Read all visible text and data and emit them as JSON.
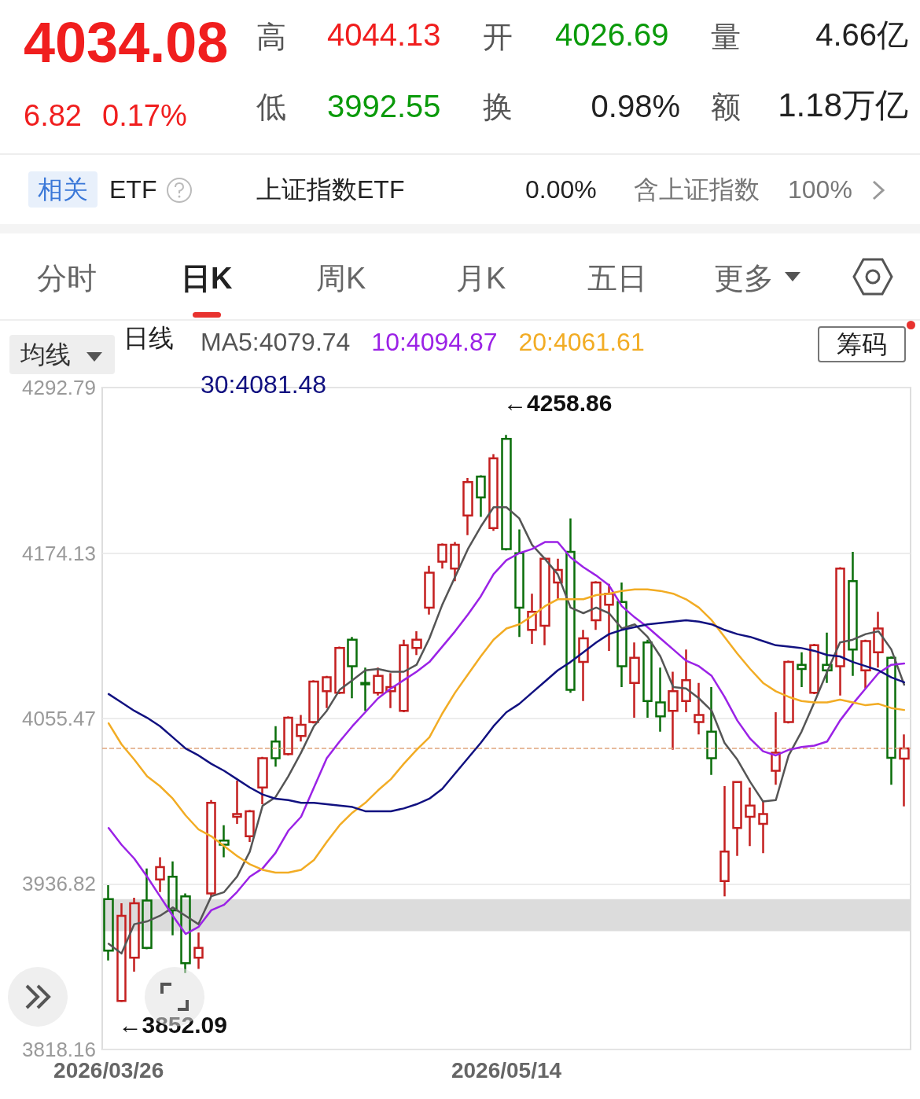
{
  "chart_data": {
    "type": "candlestick",
    "legend_title": "日线",
    "categories": [
      "2026/03/26",
      null,
      null,
      null,
      null,
      null,
      null,
      null,
      null,
      null,
      null,
      null,
      null,
      null,
      null,
      null,
      null,
      null,
      null,
      null,
      null,
      null,
      null,
      null,
      null,
      null,
      null,
      null,
      null,
      null,
      null,
      "2026/05/14",
      null,
      null,
      null,
      null,
      null,
      null,
      null,
      null,
      null,
      null,
      null,
      null,
      null,
      null,
      null,
      null,
      null,
      null,
      null,
      null,
      null,
      null,
      null,
      null,
      null,
      null,
      null,
      null,
      null,
      null,
      null
    ],
    "ohlc": [
      [
        3926,
        3936,
        3882,
        3889
      ],
      [
        3853,
        3923,
        3852.09,
        3914
      ],
      [
        3884,
        3927,
        3874,
        3923
      ],
      [
        3925,
        3948,
        3890,
        3891
      ],
      [
        3940,
        3956,
        3931,
        3949
      ],
      [
        3942,
        3953,
        3900,
        3918
      ],
      [
        3928,
        3930,
        3873,
        3880
      ],
      [
        3884,
        3902,
        3876,
        3891
      ],
      [
        3930,
        3997,
        3928,
        3995
      ],
      [
        3968,
        3979,
        3956,
        3965
      ],
      [
        3985,
        4011,
        3980,
        3987
      ],
      [
        3971,
        3990,
        3967,
        3989
      ],
      [
        4006,
        4028,
        3994,
        4027
      ],
      [
        4039,
        4050,
        4021,
        4027
      ],
      [
        4030,
        4057,
        4029,
        4056
      ],
      [
        4043,
        4058,
        4039,
        4051
      ],
      [
        4053,
        4083,
        4052,
        4082
      ],
      [
        4075,
        4086,
        4063,
        4085
      ],
      [
        4074,
        4107,
        4073,
        4106
      ],
      [
        4112,
        4114,
        4070,
        4093
      ],
      [
        4081,
        4092,
        4061,
        4080
      ],
      [
        4074,
        4092,
        4072,
        4086
      ],
      [
        4075,
        4088,
        4063,
        4078
      ],
      [
        4061,
        4112,
        4060,
        4108
      ],
      [
        4106,
        4118,
        4101,
        4112
      ],
      [
        4135,
        4165,
        4130,
        4160
      ],
      [
        4168,
        4181,
        4163,
        4180
      ],
      [
        4163,
        4182,
        4154,
        4180
      ],
      [
        4201,
        4228,
        4187,
        4225
      ],
      [
        4229,
        4230,
        4200,
        4214
      ],
      [
        4192,
        4245,
        4190,
        4242
      ],
      [
        4256,
        4258.86,
        4176,
        4177
      ],
      [
        4174,
        4191,
        4114,
        4135
      ],
      [
        4119,
        4145,
        4109,
        4132
      ],
      [
        4122,
        4171,
        4108,
        4170
      ],
      [
        4153,
        4170,
        4141,
        4162
      ],
      [
        4175,
        4199,
        4074,
        4076
      ],
      [
        4096,
        4119,
        4068,
        4113
      ],
      [
        4126,
        4154,
        4119,
        4153
      ],
      [
        4137,
        4152,
        4104,
        4145
      ],
      [
        4139,
        4153,
        4078,
        4093
      ],
      [
        4081,
        4110,
        4056,
        4099
      ],
      [
        4110,
        4112,
        4056,
        4068
      ],
      [
        4067,
        4092,
        4046,
        4057
      ],
      [
        4061,
        4089,
        4033,
        4075
      ],
      [
        4068,
        4105,
        4060,
        4083
      ],
      [
        4053,
        4081,
        4044,
        4058
      ],
      [
        4046,
        4078,
        4015,
        4027
      ],
      [
        3939,
        4007,
        3928,
        3960
      ],
      [
        3977,
        4010,
        3957,
        4010
      ],
      [
        3985,
        4006,
        3964,
        3993
      ],
      [
        3980,
        3996,
        3959,
        3987
      ],
      [
        4018,
        4060,
        4008,
        4031
      ],
      [
        4053,
        4097,
        4052,
        4096
      ],
      [
        4094,
        4103,
        4078,
        4091
      ],
      [
        4074,
        4109,
        4073,
        4108
      ],
      [
        4094,
        4117,
        4081,
        4090
      ],
      [
        4093,
        4164,
        4072,
        4163
      ],
      [
        4154,
        4175,
        4086,
        4105
      ],
      [
        4090,
        4112,
        4077,
        4111
      ],
      [
        4103,
        4132,
        4092,
        4120
      ],
      [
        4099,
        4100,
        4008,
        4027.26
      ],
      [
        4026.69,
        4044.13,
        3992.55,
        4034.08
      ]
    ],
    "colors": [
      "#0a6e0a",
      "#c41f1f",
      "#c41f1f",
      "#0a6e0a",
      "#c41f1f",
      "#0a6e0a",
      "#0a6e0a",
      "#c41f1f",
      "#c41f1f",
      "#0a6e0a",
      "#c41f1f",
      "#c41f1f",
      "#c41f1f",
      "#0a6e0a",
      "#c41f1f",
      "#c41f1f",
      "#c41f1f",
      "#c41f1f",
      "#c41f1f",
      "#0a6e0a",
      "#0a6e0a",
      "#c41f1f",
      "#c41f1f",
      "#c41f1f",
      "#c41f1f",
      "#c41f1f",
      "#c41f1f",
      "#c41f1f",
      "#c41f1f",
      "#0a6e0a",
      "#c41f1f",
      "#0a6e0a",
      "#0a6e0a",
      "#c41f1f",
      "#c41f1f",
      "#c41f1f",
      "#0a6e0a",
      "#c41f1f",
      "#c41f1f",
      "#c41f1f",
      "#0a6e0a",
      "#c41f1f",
      "#0a6e0a",
      "#0a6e0a",
      "#c41f1f",
      "#c41f1f",
      "#c41f1f",
      "#0a6e0a",
      "#c41f1f",
      "#c41f1f",
      "#c41f1f",
      "#c41f1f",
      "#c41f1f",
      "#c41f1f",
      "#0a6e0a",
      "#c41f1f",
      "#0a6e0a",
      "#c41f1f",
      "#0a6e0a",
      "#c41f1f",
      "#c41f1f",
      "#0a6e0a",
      "#c41f1f"
    ],
    "series": [
      {
        "name": "MA5:4079.74",
        "type": "line",
        "color": "#555555",
        "values": [
          3894,
          3887,
          3908,
          3910,
          3914,
          3920,
          3914,
          3908,
          3928,
          3931,
          3942,
          3960,
          3993,
          3999,
          4014,
          4031,
          4050,
          4061,
          4076,
          4083,
          4090,
          4091,
          4089,
          4089,
          4094,
          4113,
          4137,
          4157,
          4177,
          4193,
          4207,
          4207,
          4199,
          4180,
          4170,
          4159,
          4135,
          4131,
          4135,
          4131,
          4120,
          4123,
          4114,
          4100,
          4078,
          4077,
          4070,
          4061,
          4038,
          4026,
          4010,
          3996,
          3997,
          4029,
          4046,
          4067,
          4089,
          4110,
          4112,
          4116,
          4118,
          4105,
          4079.74
        ]
      },
      {
        "name": "10:4094.87",
        "type": "line",
        "color": "#9b22e6",
        "values": [
          3977,
          3965,
          3955,
          3942,
          3928,
          3914,
          3901,
          3906,
          3918,
          3922,
          3931,
          3942,
          3948,
          3959,
          3975,
          3985,
          4006,
          4027,
          4039,
          4050,
          4060,
          4070,
          4077,
          4083,
          4089,
          4096,
          4107,
          4118,
          4130,
          4143,
          4159,
          4169,
          4174,
          4177,
          4182,
          4182,
          4171,
          4164,
          4158,
          4151,
          4136,
          4128,
          4121,
          4113,
          4105,
          4097,
          4093,
          4086,
          4071,
          4054,
          4041,
          4032,
          4029,
          4033,
          4035,
          4036,
          4039,
          4054,
          4066,
          4077,
          4088,
          4094,
          4094.87
        ]
      },
      {
        "name": "20:4061.61",
        "type": "line",
        "color": "#f2ac24",
        "values": [
          4052,
          4037,
          4026,
          4014,
          4007,
          3998,
          3986,
          3976,
          3971,
          3964,
          3957,
          3951,
          3947,
          3945,
          3945,
          3947,
          3954,
          3967,
          3979,
          3988,
          3995,
          4004,
          4012,
          4023,
          4033,
          4042,
          4059,
          4074,
          4087,
          4100,
          4112,
          4120,
          4123,
          4129,
          4136,
          4141,
          4141,
          4141,
          4144,
          4145,
          4147,
          4148,
          4148,
          4147,
          4145,
          4141,
          4135,
          4126,
          4114,
          4102,
          4091,
          4081,
          4075,
          4071,
          4068,
          4067,
          4067,
          4069,
          4067,
          4065,
          4066,
          4063,
          4061.61
        ]
      },
      {
        "name": "30:4081.48",
        "type": "line",
        "color": "#111180",
        "values": [
          4073,
          4067,
          4061,
          4056,
          4050,
          4042,
          4034,
          4029,
          4023,
          4018,
          4012,
          4006,
          4001,
          3998,
          3997,
          3995,
          3995,
          3994,
          3993,
          3992,
          3989,
          3989,
          3989,
          3991,
          3994,
          3998,
          4005,
          4016,
          4027,
          4038,
          4050,
          4060,
          4066,
          4074,
          4082,
          4090,
          4096,
          4103,
          4110,
          4116,
          4119,
          4121,
          4123,
          4124,
          4125,
          4126,
          4125,
          4123,
          4119,
          4116,
          4114,
          4111,
          4108,
          4107,
          4106,
          4104,
          4101,
          4100,
          4096,
          4093,
          4090,
          4085,
          4081.48
        ]
      }
    ],
    "ylim": [
      3818.16,
      4292.79
    ],
    "yticks": [
      3818.16,
      3936.82,
      4055.47,
      4174.13,
      4292.79
    ],
    "grid": "y",
    "legend": "top left",
    "marker": "none",
    "line_style": "solid",
    "ref_lines": [
      {
        "axis": "y",
        "value": 4034.08,
        "color": "#e0a57c",
        "line_style": "dashed"
      }
    ],
    "bands": [
      {
        "axis": "y",
        "from": 3903,
        "to": 3926,
        "color": "#dcdcdc"
      }
    ],
    "annotations": [
      "4034.08",
      "6.82",
      "0.17%",
      "高",
      "4044.13",
      "开",
      "4026.69",
      "量",
      "4.66亿",
      "低",
      "3992.55",
      "换",
      "0.98%",
      "额",
      "1.18万亿",
      "相关",
      "ETF",
      "上证指数ETF",
      "0.00%",
      "含上证指数",
      "100%",
      "分时",
      "日K",
      "周K",
      "月K",
      "五日",
      "更多",
      "均线",
      "筹码",
      {
        "text": "←4258.86",
        "x": "2026/05/14",
        "y": 4258.86
      },
      "←3852.09"
    ]
  }
}
